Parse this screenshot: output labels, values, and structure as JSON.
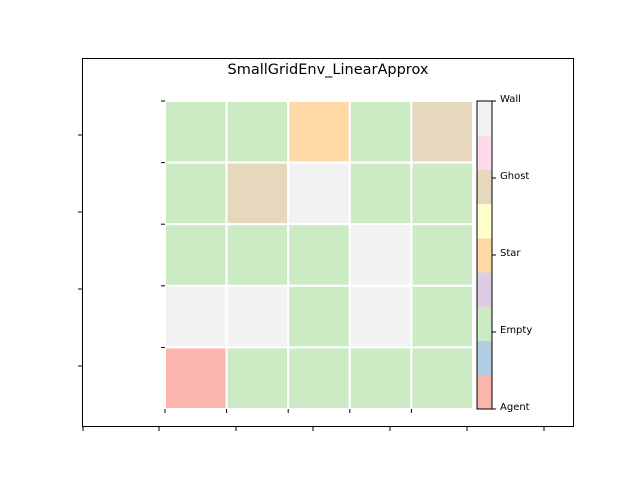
{
  "title": "SmallGridEnv_LinearApprox",
  "legend": {
    "labels": [
      "Agent",
      "Empty",
      "Star",
      "Ghost",
      "Wall"
    ],
    "bands": [
      "#fbb4ae",
      "#b3cde3",
      "#ccebc5",
      "#decbe4",
      "#fed9a6",
      "#ffffcc",
      "#e5d8bd",
      "#fddaec",
      "#f2f2f2"
    ]
  },
  "cell_colors": {
    "Agent": "#fbb4ae",
    "Empty": "#ccebc5",
    "Star": "#fed9a6",
    "Ghost": "#e5d8bd",
    "Wall": "#f2f2f2"
  },
  "grid": [
    [
      "Empty",
      "Empty",
      "Star",
      "Empty",
      "Ghost"
    ],
    [
      "Empty",
      "Ghost",
      "Wall",
      "Empty",
      "Empty"
    ],
    [
      "Empty",
      "Empty",
      "Empty",
      "Wall",
      "Empty"
    ],
    [
      "Wall",
      "Wall",
      "Empty",
      "Wall",
      "Empty"
    ],
    [
      "Agent",
      "Empty",
      "Empty",
      "Empty",
      "Empty"
    ]
  ]
}
